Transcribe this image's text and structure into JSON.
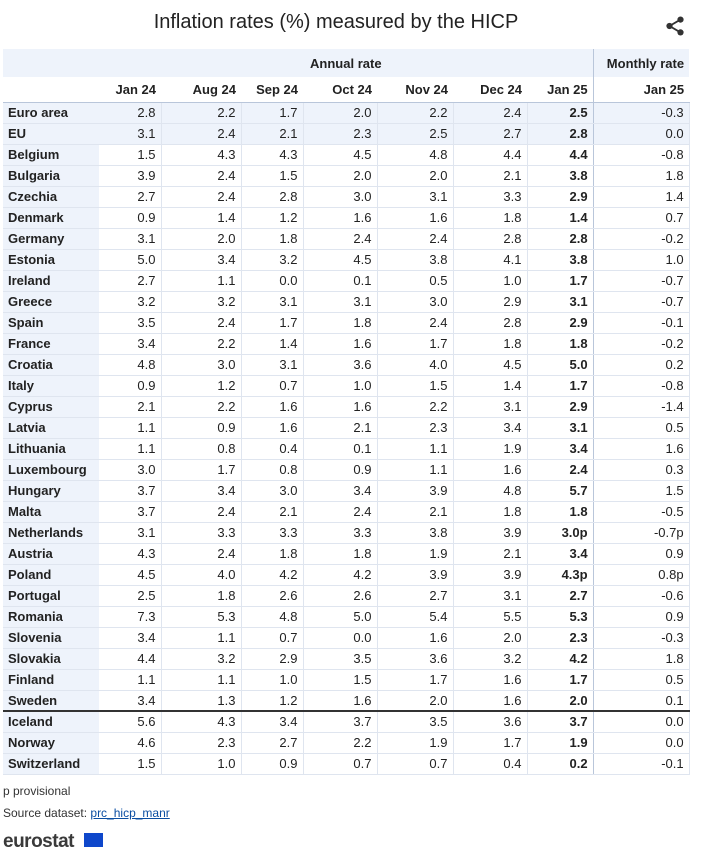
{
  "title": "Inflation rates (%) measured by the HICP",
  "share_icon": "share-icon",
  "group_headers": {
    "annual": "Annual rate",
    "monthly": "Monthly rate"
  },
  "columns": [
    "Jan 24",
    "Aug 24",
    "Sep 24",
    "Oct 24",
    "Nov 24",
    "Dec 24",
    "Jan 25",
    "Jan 25"
  ],
  "rows": [
    {
      "name": "Euro area",
      "values": [
        "2.8",
        "2.2",
        "1.7",
        "2.0",
        "2.2",
        "2.4",
        "2.5",
        "-0.3"
      ]
    },
    {
      "name": "EU",
      "values": [
        "3.1",
        "2.4",
        "2.1",
        "2.3",
        "2.5",
        "2.7",
        "2.8",
        "0.0"
      ]
    },
    {
      "name": "Belgium",
      "values": [
        "1.5",
        "4.3",
        "4.3",
        "4.5",
        "4.8",
        "4.4",
        "4.4",
        "-0.8"
      ]
    },
    {
      "name": "Bulgaria",
      "values": [
        "3.9",
        "2.4",
        "1.5",
        "2.0",
        "2.0",
        "2.1",
        "3.8",
        "1.8"
      ]
    },
    {
      "name": "Czechia",
      "values": [
        "2.7",
        "2.4",
        "2.8",
        "3.0",
        "3.1",
        "3.3",
        "2.9",
        "1.4"
      ]
    },
    {
      "name": "Denmark",
      "values": [
        "0.9",
        "1.4",
        "1.2",
        "1.6",
        "1.6",
        "1.8",
        "1.4",
        "0.7"
      ]
    },
    {
      "name": "Germany",
      "values": [
        "3.1",
        "2.0",
        "1.8",
        "2.4",
        "2.4",
        "2.8",
        "2.8",
        "-0.2"
      ]
    },
    {
      "name": "Estonia",
      "values": [
        "5.0",
        "3.4",
        "3.2",
        "4.5",
        "3.8",
        "4.1",
        "3.8",
        "1.0"
      ]
    },
    {
      "name": "Ireland",
      "values": [
        "2.7",
        "1.1",
        "0.0",
        "0.1",
        "0.5",
        "1.0",
        "1.7",
        "-0.7"
      ]
    },
    {
      "name": "Greece",
      "values": [
        "3.2",
        "3.2",
        "3.1",
        "3.1",
        "3.0",
        "2.9",
        "3.1",
        "-0.7"
      ]
    },
    {
      "name": "Spain",
      "values": [
        "3.5",
        "2.4",
        "1.7",
        "1.8",
        "2.4",
        "2.8",
        "2.9",
        "-0.1"
      ]
    },
    {
      "name": "France",
      "values": [
        "3.4",
        "2.2",
        "1.4",
        "1.6",
        "1.7",
        "1.8",
        "1.8",
        "-0.2"
      ]
    },
    {
      "name": "Croatia",
      "values": [
        "4.8",
        "3.0",
        "3.1",
        "3.6",
        "4.0",
        "4.5",
        "5.0",
        "0.2"
      ]
    },
    {
      "name": "Italy",
      "values": [
        "0.9",
        "1.2",
        "0.7",
        "1.0",
        "1.5",
        "1.4",
        "1.7",
        "-0.8"
      ]
    },
    {
      "name": "Cyprus",
      "values": [
        "2.1",
        "2.2",
        "1.6",
        "1.6",
        "2.2",
        "3.1",
        "2.9",
        "-1.4"
      ]
    },
    {
      "name": "Latvia",
      "values": [
        "1.1",
        "0.9",
        "1.6",
        "2.1",
        "2.3",
        "3.4",
        "3.1",
        "0.5"
      ]
    },
    {
      "name": "Lithuania",
      "values": [
        "1.1",
        "0.8",
        "0.4",
        "0.1",
        "1.1",
        "1.9",
        "3.4",
        "1.6"
      ]
    },
    {
      "name": "Luxembourg",
      "values": [
        "3.0",
        "1.7",
        "0.8",
        "0.9",
        "1.1",
        "1.6",
        "2.4",
        "0.3"
      ]
    },
    {
      "name": "Hungary",
      "values": [
        "3.7",
        "3.4",
        "3.0",
        "3.4",
        "3.9",
        "4.8",
        "5.7",
        "1.5"
      ]
    },
    {
      "name": "Malta",
      "values": [
        "3.7",
        "2.4",
        "2.1",
        "2.4",
        "2.1",
        "1.8",
        "1.8",
        "-0.5"
      ]
    },
    {
      "name": "Netherlands",
      "values": [
        "3.1",
        "3.3",
        "3.3",
        "3.3",
        "3.8",
        "3.9",
        "3.0p",
        "-0.7p"
      ]
    },
    {
      "name": "Austria",
      "values": [
        "4.3",
        "2.4",
        "1.8",
        "1.8",
        "1.9",
        "2.1",
        "3.4",
        "0.9"
      ]
    },
    {
      "name": "Poland",
      "values": [
        "4.5",
        "4.0",
        "4.2",
        "4.2",
        "3.9",
        "3.9",
        "4.3p",
        "0.8p"
      ]
    },
    {
      "name": "Portugal",
      "values": [
        "2.5",
        "1.8",
        "2.6",
        "2.6",
        "2.7",
        "3.1",
        "2.7",
        "-0.6"
      ]
    },
    {
      "name": "Romania",
      "values": [
        "7.3",
        "5.3",
        "4.8",
        "5.0",
        "5.4",
        "5.5",
        "5.3",
        "0.9"
      ]
    },
    {
      "name": "Slovenia",
      "values": [
        "3.4",
        "1.1",
        "0.7",
        "0.0",
        "1.6",
        "2.0",
        "2.3",
        "-0.3"
      ]
    },
    {
      "name": "Slovakia",
      "values": [
        "4.4",
        "3.2",
        "2.9",
        "3.5",
        "3.6",
        "3.2",
        "4.2",
        "1.8"
      ]
    },
    {
      "name": "Finland",
      "values": [
        "1.1",
        "1.1",
        "1.0",
        "1.5",
        "1.7",
        "1.6",
        "1.7",
        "0.5"
      ]
    },
    {
      "name": "Sweden",
      "values": [
        "3.4",
        "1.3",
        "1.2",
        "1.6",
        "2.0",
        "1.6",
        "2.0",
        "0.1"
      ]
    },
    {
      "name": "Iceland",
      "values": [
        "5.6",
        "4.3",
        "3.4",
        "3.7",
        "3.5",
        "3.6",
        "3.7",
        "0.0"
      ]
    },
    {
      "name": "Norway",
      "values": [
        "4.6",
        "2.3",
        "2.7",
        "2.2",
        "1.9",
        "1.7",
        "1.9",
        "0.0"
      ]
    },
    {
      "name": "Switzerland",
      "values": [
        "1.5",
        "1.0",
        "0.9",
        "0.7",
        "0.7",
        "0.4",
        "0.2",
        "-0.1"
      ]
    }
  ],
  "footnote": "p provisional",
  "source_label": "Source dataset: ",
  "source_link": "prc_hicp_manr",
  "logo_text": "eurostat",
  "colors": {
    "header_bg": "#eef3fb",
    "link": "#0b4ea2",
    "flag": "#0e47cb"
  }
}
